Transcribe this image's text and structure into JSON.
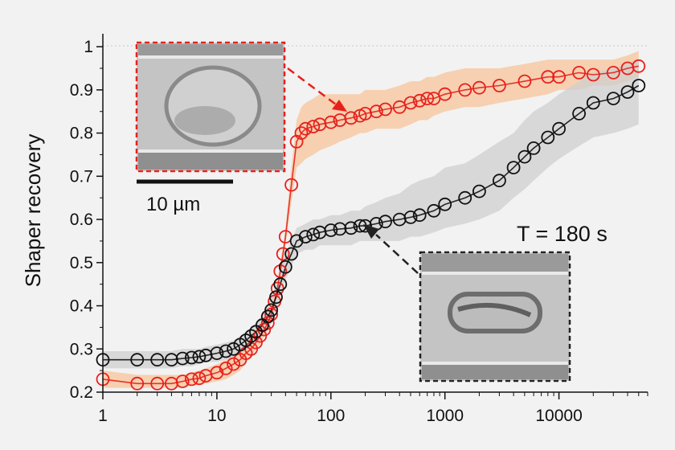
{
  "chart_data": {
    "type": "scatter",
    "title": "",
    "xlabel": "",
    "ylabel": "Shaper recovery",
    "xscale": "log",
    "xlim": [
      1,
      60000
    ],
    "ylim": [
      0.2,
      1.03
    ],
    "x_ticks": [
      1,
      10,
      100,
      1000,
      10000
    ],
    "x_tick_labels": [
      "1",
      "10",
      "100",
      "1000",
      "10000"
    ],
    "y_ticks": [
      0.2,
      0.3,
      0.4,
      0.5,
      0.6,
      0.7,
      0.8,
      0.9,
      1.0
    ],
    "y_tick_labels": [
      "0.2",
      "0.3",
      "0.4",
      "0.5",
      "0.6",
      "0.7",
      "0.8",
      "0.9",
      "1"
    ],
    "grid": false,
    "legend": "none",
    "annotations": {
      "temperature_label": "T = 180 s",
      "scale_bar_label": "10 µm"
    },
    "series": [
      {
        "color": "#e8201c",
        "marker": "open-circle",
        "band_color": "#f7c49a",
        "points": [
          [
            1,
            0.23
          ],
          [
            2,
            0.22
          ],
          [
            3,
            0.22
          ],
          [
            4,
            0.22
          ],
          [
            5,
            0.225
          ],
          [
            6,
            0.23
          ],
          [
            7,
            0.232
          ],
          [
            8,
            0.238
          ],
          [
            10,
            0.245
          ],
          [
            12,
            0.255
          ],
          [
            14,
            0.265
          ],
          [
            16,
            0.275
          ],
          [
            18,
            0.29
          ],
          [
            20,
            0.3
          ],
          [
            22,
            0.315
          ],
          [
            24,
            0.33
          ],
          [
            26,
            0.345
          ],
          [
            28,
            0.36
          ],
          [
            30,
            0.38
          ],
          [
            32,
            0.41
          ],
          [
            34,
            0.44
          ],
          [
            36,
            0.48
          ],
          [
            38,
            0.52
          ],
          [
            40,
            0.56
          ],
          [
            45,
            0.68
          ],
          [
            50,
            0.78
          ],
          [
            55,
            0.8
          ],
          [
            60,
            0.81
          ],
          [
            70,
            0.815
          ],
          [
            80,
            0.82
          ],
          [
            100,
            0.825
          ],
          [
            120,
            0.83
          ],
          [
            150,
            0.835
          ],
          [
            180,
            0.84
          ],
          [
            200,
            0.845
          ],
          [
            250,
            0.85
          ],
          [
            300,
            0.855
          ],
          [
            400,
            0.86
          ],
          [
            500,
            0.87
          ],
          [
            600,
            0.875
          ],
          [
            700,
            0.88
          ],
          [
            800,
            0.88
          ],
          [
            1000,
            0.89
          ],
          [
            1500,
            0.9
          ],
          [
            2000,
            0.905
          ],
          [
            3000,
            0.91
          ],
          [
            5000,
            0.92
          ],
          [
            8000,
            0.93
          ],
          [
            10000,
            0.93
          ],
          [
            15000,
            0.94
          ],
          [
            20000,
            0.935
          ],
          [
            30000,
            0.94
          ],
          [
            40000,
            0.95
          ],
          [
            50000,
            0.955
          ]
        ],
        "band_lower": [
          0.21,
          0.21,
          0.21,
          0.21,
          0.21,
          0.215,
          0.22,
          0.22,
          0.225,
          0.23,
          0.24,
          0.25,
          0.27,
          0.28,
          0.3,
          0.31,
          0.33,
          0.34,
          0.36,
          0.39,
          0.42,
          0.46,
          0.5,
          0.54,
          0.64,
          0.72,
          0.73,
          0.74,
          0.75,
          0.76,
          0.77,
          0.78,
          0.79,
          0.8,
          0.8,
          0.81,
          0.81,
          0.81,
          0.82,
          0.83,
          0.83,
          0.84,
          0.85,
          0.86,
          0.86,
          0.87,
          0.88,
          0.89,
          0.9,
          0.9,
          0.91,
          0.91,
          0.92,
          0.93
        ],
        "band_upper": [
          0.25,
          0.24,
          0.24,
          0.24,
          0.24,
          0.245,
          0.25,
          0.255,
          0.265,
          0.275,
          0.285,
          0.3,
          0.31,
          0.32,
          0.33,
          0.35,
          0.36,
          0.38,
          0.4,
          0.43,
          0.46,
          0.5,
          0.54,
          0.58,
          0.72,
          0.83,
          0.86,
          0.87,
          0.88,
          0.89,
          0.89,
          0.89,
          0.89,
          0.89,
          0.9,
          0.9,
          0.9,
          0.91,
          0.92,
          0.92,
          0.93,
          0.93,
          0.94,
          0.95,
          0.95,
          0.95,
          0.96,
          0.97,
          0.97,
          0.97,
          0.97,
          0.97,
          0.98,
          0.99
        ]
      },
      {
        "color": "#111111",
        "marker": "open-circle",
        "band_color": "#cfcfcf",
        "points": [
          [
            1,
            0.275
          ],
          [
            2,
            0.275
          ],
          [
            3,
            0.275
          ],
          [
            4,
            0.275
          ],
          [
            5,
            0.278
          ],
          [
            6,
            0.28
          ],
          [
            7,
            0.282
          ],
          [
            8,
            0.285
          ],
          [
            10,
            0.29
          ],
          [
            12,
            0.295
          ],
          [
            14,
            0.3
          ],
          [
            16,
            0.31
          ],
          [
            18,
            0.32
          ],
          [
            20,
            0.33
          ],
          [
            22,
            0.34
          ],
          [
            25,
            0.355
          ],
          [
            28,
            0.375
          ],
          [
            30,
            0.39
          ],
          [
            33,
            0.42
          ],
          [
            36,
            0.45
          ],
          [
            40,
            0.49
          ],
          [
            45,
            0.52
          ],
          [
            50,
            0.55
          ],
          [
            60,
            0.56
          ],
          [
            70,
            0.565
          ],
          [
            80,
            0.57
          ],
          [
            100,
            0.575
          ],
          [
            120,
            0.578
          ],
          [
            150,
            0.58
          ],
          [
            180,
            0.585
          ],
          [
            200,
            0.585
          ],
          [
            250,
            0.59
          ],
          [
            300,
            0.595
          ],
          [
            400,
            0.6
          ],
          [
            500,
            0.605
          ],
          [
            600,
            0.61
          ],
          [
            800,
            0.62
          ],
          [
            1000,
            0.635
          ],
          [
            1500,
            0.65
          ],
          [
            2000,
            0.665
          ],
          [
            3000,
            0.69
          ],
          [
            4000,
            0.72
          ],
          [
            5000,
            0.745
          ],
          [
            6000,
            0.765
          ],
          [
            8000,
            0.79
          ],
          [
            10000,
            0.81
          ],
          [
            15000,
            0.845
          ],
          [
            20000,
            0.87
          ],
          [
            30000,
            0.88
          ],
          [
            40000,
            0.895
          ],
          [
            50000,
            0.91
          ]
        ],
        "band_lower": [
          0.255,
          0.255,
          0.255,
          0.255,
          0.26,
          0.26,
          0.265,
          0.27,
          0.27,
          0.275,
          0.28,
          0.29,
          0.3,
          0.31,
          0.32,
          0.33,
          0.35,
          0.36,
          0.39,
          0.42,
          0.46,
          0.49,
          0.52,
          0.53,
          0.53,
          0.54,
          0.54,
          0.54,
          0.54,
          0.55,
          0.55,
          0.55,
          0.55,
          0.55,
          0.56,
          0.56,
          0.57,
          0.58,
          0.59,
          0.6,
          0.62,
          0.65,
          0.67,
          0.69,
          0.72,
          0.74,
          0.77,
          0.79,
          0.8,
          0.81,
          0.82
        ],
        "band_upper": [
          0.295,
          0.295,
          0.295,
          0.295,
          0.3,
          0.3,
          0.3,
          0.305,
          0.31,
          0.315,
          0.32,
          0.33,
          0.34,
          0.35,
          0.36,
          0.38,
          0.4,
          0.42,
          0.45,
          0.48,
          0.52,
          0.55,
          0.58,
          0.59,
          0.6,
          0.6,
          0.61,
          0.61,
          0.62,
          0.62,
          0.63,
          0.64,
          0.65,
          0.66,
          0.68,
          0.69,
          0.7,
          0.72,
          0.73,
          0.75,
          0.78,
          0.8,
          0.83,
          0.85,
          0.87,
          0.89,
          0.92,
          0.94,
          0.95,
          0.96,
          0.97
        ]
      }
    ]
  }
}
